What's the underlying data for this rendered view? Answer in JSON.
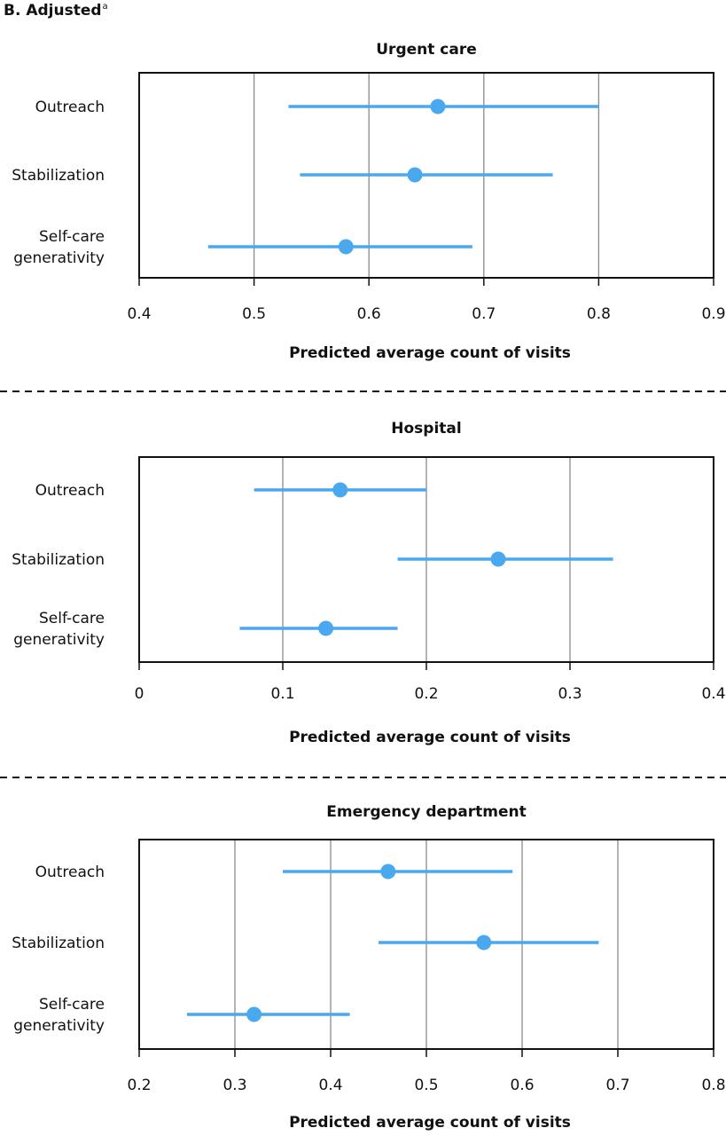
{
  "figure": {
    "title": "B. Adjusted",
    "title_superscript": "a",
    "point_color": "#4aa8ee",
    "separator_color": "#111111"
  },
  "chart_data": [
    {
      "type": "dot-interval",
      "title": "Urgent care",
      "xlabel": "Predicted average count of visits",
      "xlim": [
        0.4,
        0.9
      ],
      "xticks": [
        "0.4",
        "0.5",
        "0.6",
        "0.7",
        "0.8",
        "0.9"
      ],
      "grid": "vertical",
      "categories": [
        {
          "label": [
            "Outreach"
          ],
          "estimate": 0.66,
          "lower": 0.53,
          "upper": 0.8
        },
        {
          "label": [
            "Stabilization"
          ],
          "estimate": 0.64,
          "lower": 0.54,
          "upper": 0.76
        },
        {
          "label": [
            "Self-care",
            "generativity"
          ],
          "estimate": 0.58,
          "lower": 0.46,
          "upper": 0.69
        }
      ]
    },
    {
      "type": "dot-interval",
      "title": "Hospital",
      "xlabel": "Predicted average count of visits",
      "xlim": [
        0,
        0.4
      ],
      "xticks": [
        "0",
        "0.1",
        "0.2",
        "0.3",
        "0.4"
      ],
      "grid": "vertical",
      "categories": [
        {
          "label": [
            "Outreach"
          ],
          "estimate": 0.14,
          "lower": 0.08,
          "upper": 0.2
        },
        {
          "label": [
            "Stabilization"
          ],
          "estimate": 0.25,
          "lower": 0.18,
          "upper": 0.33
        },
        {
          "label": [
            "Self-care",
            "generativity"
          ],
          "estimate": 0.13,
          "lower": 0.07,
          "upper": 0.18
        }
      ]
    },
    {
      "type": "dot-interval",
      "title": "Emergency department",
      "xlabel": "Predicted average count of visits",
      "xlim": [
        0.2,
        0.8
      ],
      "xticks": [
        "0.2",
        "0.3",
        "0.4",
        "0.5",
        "0.6",
        "0.7",
        "0.8"
      ],
      "grid": "vertical",
      "categories": [
        {
          "label": [
            "Outreach"
          ],
          "estimate": 0.46,
          "lower": 0.35,
          "upper": 0.59
        },
        {
          "label": [
            "Stabilization"
          ],
          "estimate": 0.56,
          "lower": 0.45,
          "upper": 0.68
        },
        {
          "label": [
            "Self-care",
            "generativity"
          ],
          "estimate": 0.32,
          "lower": 0.25,
          "upper": 0.42
        }
      ]
    }
  ]
}
